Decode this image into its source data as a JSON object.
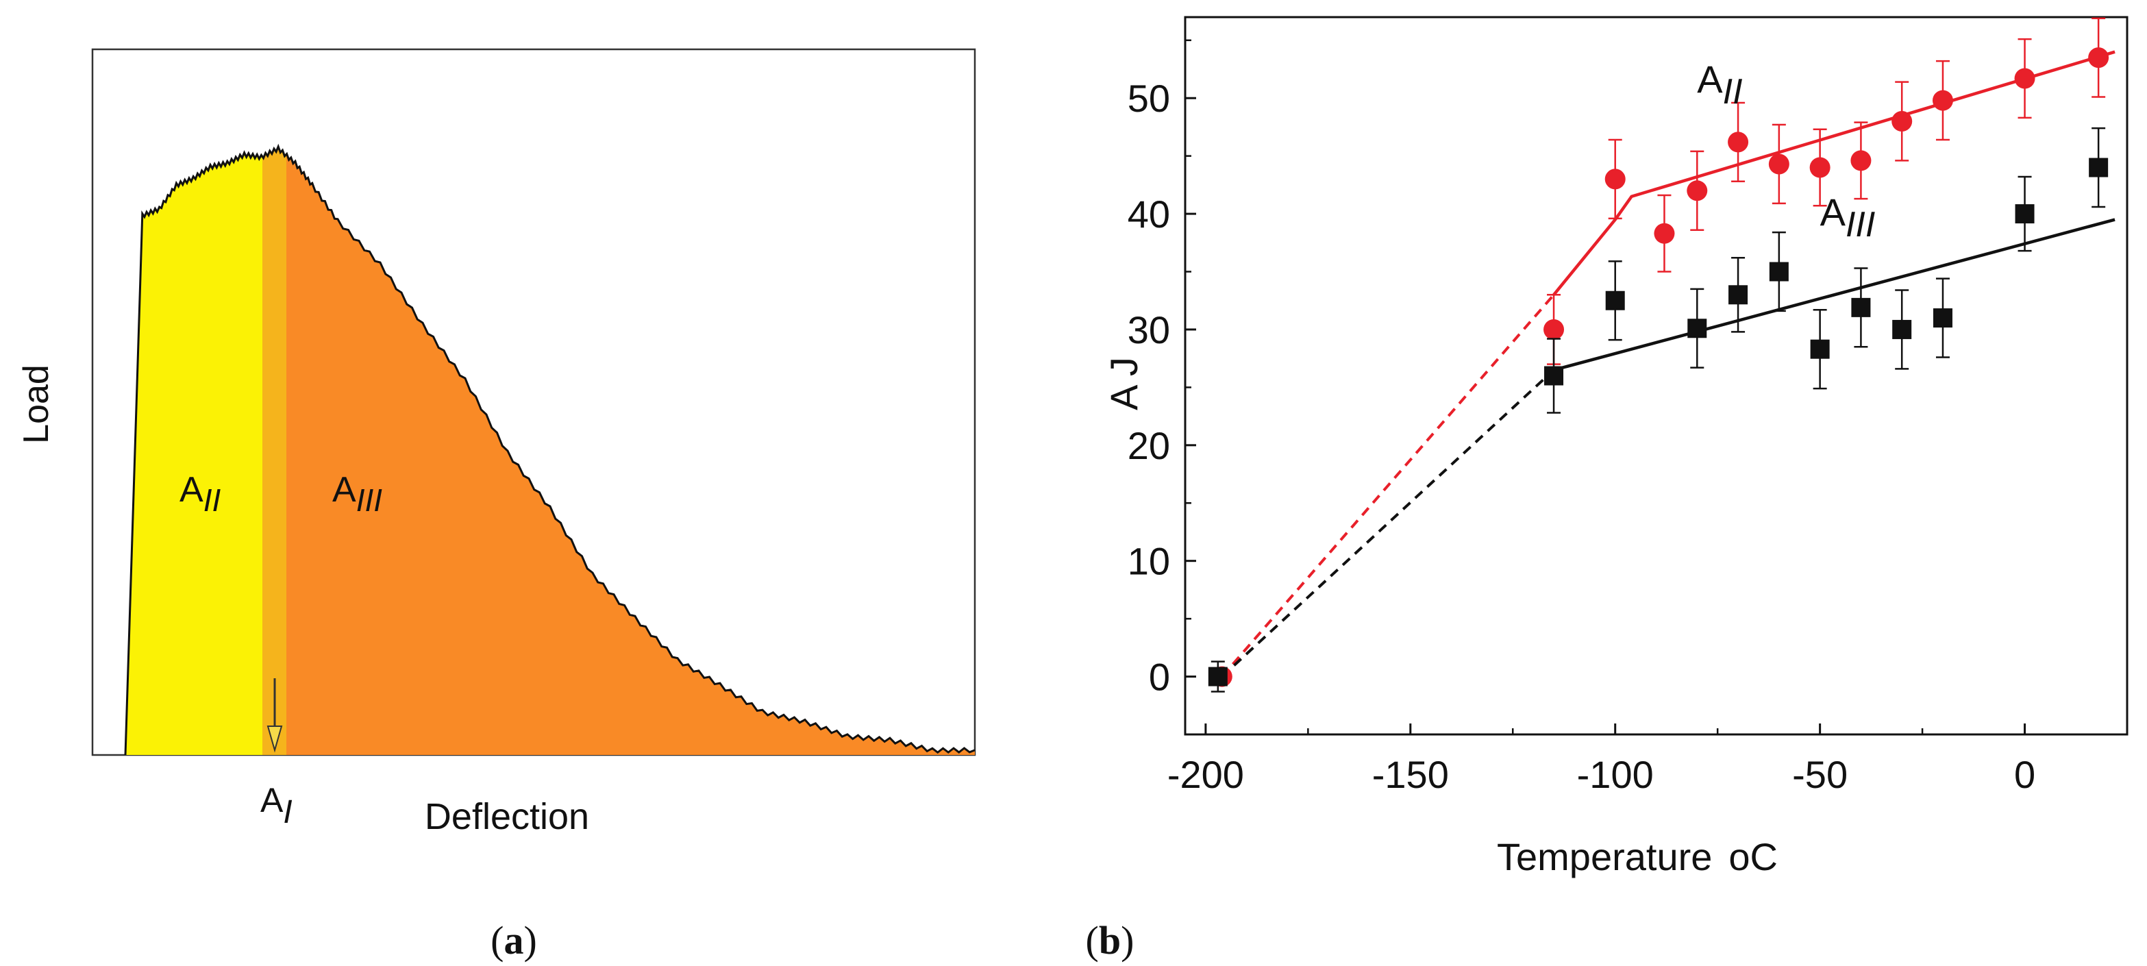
{
  "chart_data": [
    {
      "panel": "a",
      "type": "area",
      "xlabel": "Deflection",
      "ylabel": "Load",
      "caption": {
        "open": "(",
        "letter": "a",
        "close": ")"
      },
      "grid": false,
      "colors": {
        "A_II": "#fbf205",
        "A_I": "#f5b41c",
        "A_III": "#f98a26",
        "outline": "#111111"
      },
      "region_labels": {
        "A_II": {
          "base": "A",
          "sub": "II"
        },
        "A_III": {
          "base": "A",
          "sub": "III"
        },
        "A_I": {
          "base": "A",
          "sub": "I"
        }
      },
      "curve": [
        [
          0.0,
          0.0
        ],
        [
          0.02,
          0.88
        ],
        [
          0.04,
          0.9
        ],
        [
          0.06,
          0.93
        ],
        [
          0.08,
          0.95
        ],
        [
          0.1,
          0.96
        ],
        [
          0.12,
          0.975
        ],
        [
          0.14,
          0.98
        ],
        [
          0.16,
          0.985
        ],
        [
          0.18,
          0.99
        ],
        [
          0.2,
          0.975
        ],
        [
          0.22,
          0.93
        ],
        [
          0.25,
          0.88
        ],
        [
          0.3,
          0.8
        ],
        [
          0.35,
          0.71
        ],
        [
          0.4,
          0.61
        ],
        [
          0.45,
          0.5
        ],
        [
          0.5,
          0.4
        ],
        [
          0.55,
          0.3
        ],
        [
          0.6,
          0.22
        ],
        [
          0.65,
          0.16
        ],
        [
          0.7,
          0.11
        ],
        [
          0.75,
          0.075
        ],
        [
          0.8,
          0.05
        ],
        [
          0.85,
          0.035
        ],
        [
          0.9,
          0.02
        ],
        [
          0.95,
          0.012
        ],
        [
          1.0,
          0.008
        ]
      ]
    },
    {
      "panel": "b",
      "type": "scatter",
      "xlabel": "Temperature",
      "xlabel_unit": "oC",
      "ylabel": "A  J",
      "xlim": [
        -205,
        25
      ],
      "ylim": [
        -5,
        57
      ],
      "xticks": [
        -200,
        -150,
        -100,
        -50,
        0
      ],
      "yticks": [
        0,
        10,
        20,
        30,
        40,
        50
      ],
      "caption": {
        "open": "(",
        "letter": "b",
        "close": ")"
      },
      "grid": false,
      "series": [
        {
          "key": "A_II",
          "label": {
            "base": "A",
            "sub": "II"
          },
          "color": "#e8202a",
          "marker": "circle",
          "points": [
            {
              "x": -196,
              "y": 0,
              "err": 0
            },
            {
              "x": -115,
              "y": 30,
              "err": 3.0
            },
            {
              "x": -100,
              "y": 43,
              "err": 3.4
            },
            {
              "x": -88,
              "y": 38.3,
              "err": 3.3
            },
            {
              "x": -80,
              "y": 42,
              "err": 3.4
            },
            {
              "x": -70,
              "y": 46.2,
              "err": 3.4
            },
            {
              "x": -60,
              "y": 44.3,
              "err": 3.4
            },
            {
              "x": -50,
              "y": 44,
              "err": 3.3
            },
            {
              "x": -40,
              "y": 44.6,
              "err": 3.3
            },
            {
              "x": -30,
              "y": 48,
              "err": 3.4
            },
            {
              "x": -20,
              "y": 49.8,
              "err": 3.4
            },
            {
              "x": 0,
              "y": 51.7,
              "err": 3.4
            },
            {
              "x": 18,
              "y": 53.5,
              "err": 3.4
            }
          ],
          "fit_dashed": [
            [
              -196,
              0
            ],
            [
              -115,
              33
            ]
          ],
          "fit_solid": [
            [
              -115,
              33
            ],
            [
              -100,
              39.5
            ],
            [
              -96,
              41.5
            ],
            [
              22,
              54
            ]
          ]
        },
        {
          "key": "A_III",
          "label": {
            "base": "A",
            "sub": "III"
          },
          "color": "#111111",
          "marker": "square",
          "points": [
            {
              "x": -197,
              "y": 0,
              "err": 1.3
            },
            {
              "x": -115,
              "y": 26,
              "err": 3.2
            },
            {
              "x": -100,
              "y": 32.5,
              "err": 3.4
            },
            {
              "x": -80,
              "y": 30.1,
              "err": 3.4
            },
            {
              "x": -70,
              "y": 33,
              "err": 3.2
            },
            {
              "x": -60,
              "y": 35,
              "err": 3.4
            },
            {
              "x": -50,
              "y": 28.3,
              "err": 3.4
            },
            {
              "x": -40,
              "y": 31.9,
              "err": 3.4
            },
            {
              "x": -30,
              "y": 30,
              "err": 3.4
            },
            {
              "x": -20,
              "y": 31,
              "err": 3.4
            },
            {
              "x": 0,
              "y": 40,
              "err": 3.2
            },
            {
              "x": 18,
              "y": 44,
              "err": 3.4
            }
          ],
          "fit_dashed": [
            [
              -196,
              0
            ],
            [
              -115,
              26.5
            ]
          ],
          "fit_solid": [
            [
              -115,
              26.5
            ],
            [
              22,
              39.5
            ]
          ]
        }
      ],
      "label_anchors": {
        "A_II": [
          -80,
          50.5
        ],
        "A_III": [
          -50,
          39
        ]
      }
    }
  ]
}
